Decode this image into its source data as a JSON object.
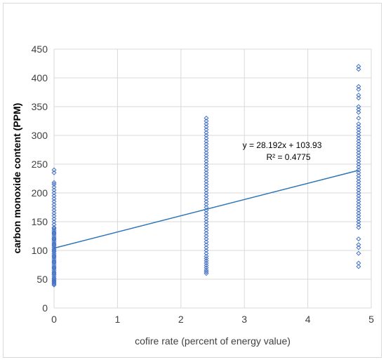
{
  "chart_data": {
    "type": "scatter",
    "title": "",
    "xlabel": "cofire rate (percent of energy value)",
    "ylabel": "carbon monoxide content (PPM)",
    "xlim": [
      0,
      5
    ],
    "ylim": [
      0,
      450
    ],
    "x_ticks": [
      "0",
      "1",
      "2",
      "3",
      "4",
      "5"
    ],
    "y_ticks": [
      "0",
      "50",
      "100",
      "150",
      "200",
      "250",
      "300",
      "350",
      "400",
      "450"
    ],
    "x_tick_values": [
      0,
      1,
      2,
      3,
      4,
      5
    ],
    "y_tick_values": [
      0,
      50,
      100,
      150,
      200,
      250,
      300,
      350,
      400,
      450
    ],
    "grid": true,
    "marker_color": "#4472c4",
    "trendline_color": "#2e75b6",
    "series": [
      {
        "x": 0,
        "y": [
          40,
          42,
          44,
          46,
          48,
          50,
          52,
          55,
          58,
          60,
          62,
          65,
          68,
          70,
          72,
          75,
          78,
          80,
          82,
          85,
          88,
          90,
          92,
          95,
          98,
          100,
          102,
          105,
          108,
          110,
          112,
          115,
          118,
          120,
          122,
          125,
          128,
          130,
          132,
          135,
          138,
          140,
          145,
          150,
          155,
          160,
          165,
          170,
          175,
          180,
          185,
          190,
          195,
          200,
          205,
          210,
          215,
          218,
          235,
          240
        ]
      },
      {
        "x": 2.4,
        "y": [
          60,
          63,
          66,
          70,
          74,
          78,
          82,
          86,
          90,
          95,
          100,
          105,
          110,
          115,
          120,
          125,
          130,
          135,
          140,
          145,
          150,
          155,
          160,
          165,
          170,
          175,
          180,
          185,
          190,
          195,
          200,
          205,
          210,
          215,
          220,
          225,
          230,
          235,
          240,
          245,
          250,
          255,
          260,
          265,
          270,
          275,
          280,
          285,
          290,
          295,
          300,
          305,
          310,
          315,
          320,
          325,
          330
        ]
      },
      {
        "x": 4.8,
        "y": [
          72,
          78,
          95,
          105,
          110,
          120,
          140,
          145,
          150,
          155,
          160,
          165,
          170,
          175,
          180,
          185,
          190,
          195,
          200,
          205,
          210,
          215,
          220,
          225,
          230,
          235,
          240,
          245,
          250,
          255,
          260,
          265,
          270,
          275,
          280,
          285,
          290,
          295,
          300,
          305,
          310,
          315,
          320,
          330,
          340,
          345,
          350,
          365,
          370,
          380,
          385,
          415,
          420
        ]
      }
    ],
    "trendline": {
      "slope": 28.192,
      "intercept": 103.93,
      "x_range": [
        0,
        4.8
      ],
      "equation": "y = 28.192x + 103.93",
      "r2": "R² = 0.4775"
    }
  }
}
